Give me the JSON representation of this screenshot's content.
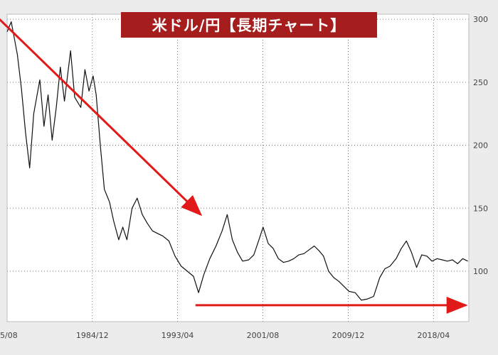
{
  "chart_data": {
    "type": "line",
    "title": "米ドル/円【長期チャート】",
    "x_tick_labels": [
      "5/08",
      "1984/12",
      "1993/04",
      "2001/08",
      "2009/12",
      "2018/04"
    ],
    "x_tick_dates": [
      1976.6,
      1984.92,
      1993.25,
      2001.58,
      2009.92,
      2018.25
    ],
    "xlim": [
      1976.6,
      2021.7
    ],
    "y_tick_labels": [
      "100",
      "150",
      "200",
      "250",
      "300"
    ],
    "y_tick_values": [
      100,
      150,
      200,
      250,
      300
    ],
    "ylim": [
      60,
      304
    ],
    "y_axis_side": "right",
    "grid": "dotted",
    "series": [
      {
        "color": "#111111",
        "x": [
          1976.6,
          1977.0,
          1977.6,
          1978.0,
          1978.4,
          1978.8,
          1979.2,
          1979.8,
          1980.2,
          1980.6,
          1981.0,
          1981.4,
          1981.8,
          1982.2,
          1982.8,
          1983.2,
          1983.8,
          1984.2,
          1984.6,
          1985.0,
          1985.3,
          1985.7,
          1986.1,
          1986.6,
          1987.0,
          1987.5,
          1987.9,
          1988.3,
          1988.8,
          1989.3,
          1989.8,
          1990.3,
          1990.8,
          1991.3,
          1991.8,
          1992.4,
          1993.0,
          1993.6,
          1994.2,
          1994.8,
          1995.3,
          1995.8,
          1996.4,
          1997.0,
          1997.6,
          1998.1,
          1998.6,
          1999.1,
          1999.6,
          2000.2,
          2000.7,
          2001.2,
          2001.6,
          2002.1,
          2002.6,
          2003.1,
          2003.6,
          2004.1,
          2004.6,
          2005.1,
          2005.6,
          2006.1,
          2006.6,
          2007.1,
          2007.5,
          2008.0,
          2008.5,
          2009.0,
          2009.5,
          2010.0,
          2010.6,
          2011.2,
          2011.8,
          2012.4,
          2013.0,
          2013.5,
          2014.0,
          2014.6,
          2015.1,
          2015.6,
          2016.1,
          2016.6,
          2017.1,
          2017.6,
          2018.1,
          2018.6,
          2019.1,
          2019.6,
          2020.1,
          2020.6,
          2021.1,
          2021.6
        ],
        "y": [
          290,
          298,
          272,
          245,
          210,
          182,
          225,
          252,
          215,
          240,
          204,
          230,
          262,
          235,
          275,
          238,
          230,
          260,
          243,
          255,
          240,
          200,
          165,
          155,
          140,
          125,
          135,
          125,
          150,
          158,
          145,
          138,
          132,
          130,
          128,
          124,
          112,
          104,
          100,
          96,
          83,
          97,
          110,
          120,
          132,
          145,
          125,
          115,
          108,
          109,
          113,
          125,
          135,
          122,
          118,
          110,
          107,
          108,
          110,
          113,
          114,
          117,
          120,
          116,
          112,
          100,
          95,
          92,
          88,
          84,
          83,
          77,
          78,
          80,
          95,
          102,
          104,
          110,
          118,
          124,
          115,
          103,
          113,
          112,
          108,
          110,
          109,
          108,
          109,
          106,
          110,
          108
        ]
      }
    ],
    "annotations": [
      {
        "type": "arrow",
        "color": "#e11919",
        "meaning": "downtrend",
        "from": [
          1975.6,
          302
        ],
        "to": [
          1995.5,
          145
        ]
      },
      {
        "type": "arrow",
        "color": "#e11919",
        "meaning": "sideways range",
        "from": [
          1995.0,
          73
        ],
        "to": [
          2021.4,
          73
        ]
      }
    ]
  }
}
